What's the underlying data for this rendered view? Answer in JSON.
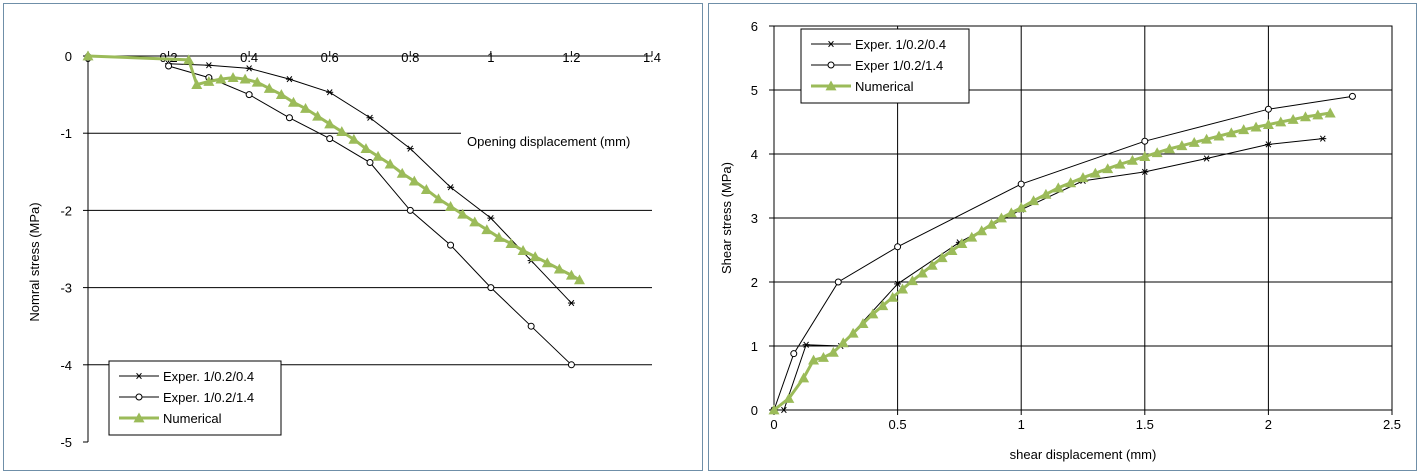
{
  "chart_data": [
    {
      "type": "line",
      "title": "",
      "xlabel": "Opening displacement (mm)",
      "ylabel": "Nomral stress (MPa)",
      "xlim": [
        0,
        1.4
      ],
      "ylim": [
        -5,
        0
      ],
      "xticks": [
        "0",
        "0.2",
        "0.4",
        "0.6",
        "0.8",
        "1",
        "1.2",
        "1.4"
      ],
      "yticks": [
        "0",
        "-1",
        "-2",
        "-3",
        "-4",
        "-5"
      ],
      "grid": "horizontal",
      "x_axis_position": "top",
      "legend_position": "bottom-left",
      "series": [
        {
          "name": "Exper. 1/0.2/0.4",
          "marker": "asterisk",
          "color": "#000000",
          "x": [
            0.2,
            0.3,
            0.4,
            0.5,
            0.6,
            0.7,
            0.8,
            0.9,
            1.0,
            1.1,
            1.2
          ],
          "y": [
            -0.1,
            -0.12,
            -0.16,
            -0.3,
            -0.47,
            -0.8,
            -1.2,
            -1.7,
            -2.1,
            -2.65,
            -3.2
          ]
        },
        {
          "name": "Exper. 1/0.2/1.4",
          "marker": "circle",
          "color": "#000000",
          "x": [
            0.2,
            0.3,
            0.4,
            0.5,
            0.6,
            0.7,
            0.8,
            0.9,
            1.0,
            1.1,
            1.2
          ],
          "y": [
            -0.13,
            -0.28,
            -0.5,
            -0.8,
            -1.07,
            -1.38,
            -2.0,
            -2.45,
            -3.0,
            -3.5,
            -4.0
          ]
        },
        {
          "name": "Numerical",
          "marker": "triangle",
          "color": "#9bbb59",
          "x": [
            0.0,
            0.25,
            0.27,
            0.3,
            0.33,
            0.36,
            0.39,
            0.42,
            0.45,
            0.48,
            0.51,
            0.54,
            0.57,
            0.6,
            0.63,
            0.66,
            0.69,
            0.72,
            0.75,
            0.78,
            0.81,
            0.84,
            0.87,
            0.9,
            0.93,
            0.96,
            0.99,
            1.02,
            1.05,
            1.08,
            1.11,
            1.14,
            1.17,
            1.2,
            1.22
          ],
          "y": [
            0.0,
            -0.05,
            -0.37,
            -0.33,
            -0.3,
            -0.28,
            -0.3,
            -0.34,
            -0.42,
            -0.5,
            -0.6,
            -0.68,
            -0.78,
            -0.88,
            -0.98,
            -1.08,
            -1.2,
            -1.3,
            -1.4,
            -1.52,
            -1.62,
            -1.73,
            -1.85,
            -1.95,
            -2.05,
            -2.15,
            -2.25,
            -2.35,
            -2.43,
            -2.52,
            -2.6,
            -2.68,
            -2.76,
            -2.84,
            -2.9
          ]
        }
      ]
    },
    {
      "type": "line",
      "title": "",
      "xlabel": "shear displacement (mm)",
      "ylabel": "Shear stress (MPa)",
      "xlim": [
        0,
        2.5
      ],
      "ylim": [
        0,
        6
      ],
      "xticks": [
        "0",
        "0.5",
        "1",
        "1.5",
        "2",
        "2.5"
      ],
      "yticks": [
        "0",
        "1",
        "2",
        "3",
        "4",
        "5",
        "6"
      ],
      "grid": "both",
      "legend_position": "top-left",
      "series": [
        {
          "name": "Exper. 1/0.2/0.4",
          "marker": "asterisk",
          "color": "#000000",
          "x": [
            0.0,
            0.04,
            0.13,
            0.27,
            0.5,
            0.75,
            1.0,
            1.25,
            1.5,
            1.75,
            2.0,
            2.22
          ],
          "y": [
            0.0,
            0.0,
            1.02,
            1.0,
            1.97,
            2.62,
            3.13,
            3.58,
            3.72,
            3.93,
            4.15,
            4.24
          ]
        },
        {
          "name": "Exper 1/0.2/1.4",
          "marker": "circle",
          "color": "#000000",
          "x": [
            0.0,
            0.08,
            0.26,
            0.5,
            1.0,
            1.5,
            2.0,
            2.34
          ],
          "y": [
            0.0,
            0.88,
            2.0,
            2.55,
            3.53,
            4.2,
            4.7,
            4.9
          ]
        },
        {
          "name": "Numerical",
          "marker": "triangle",
          "color": "#9bbb59",
          "x": [
            0.0,
            0.06,
            0.12,
            0.16,
            0.2,
            0.24,
            0.28,
            0.32,
            0.36,
            0.4,
            0.44,
            0.48,
            0.52,
            0.56,
            0.6,
            0.64,
            0.68,
            0.72,
            0.76,
            0.8,
            0.84,
            0.88,
            0.92,
            0.96,
            1.0,
            1.05,
            1.1,
            1.15,
            1.2,
            1.25,
            1.3,
            1.35,
            1.4,
            1.45,
            1.5,
            1.55,
            1.6,
            1.65,
            1.7,
            1.75,
            1.8,
            1.85,
            1.9,
            1.95,
            2.0,
            2.05,
            2.1,
            2.15,
            2.2,
            2.25
          ],
          "y": [
            0.0,
            0.18,
            0.5,
            0.78,
            0.82,
            0.9,
            1.05,
            1.2,
            1.35,
            1.5,
            1.63,
            1.76,
            1.89,
            2.02,
            2.14,
            2.26,
            2.38,
            2.49,
            2.6,
            2.7,
            2.8,
            2.9,
            3.0,
            3.08,
            3.16,
            3.27,
            3.37,
            3.47,
            3.55,
            3.63,
            3.7,
            3.77,
            3.84,
            3.9,
            3.96,
            4.02,
            4.08,
            4.13,
            4.18,
            4.23,
            4.28,
            4.33,
            4.38,
            4.42,
            4.46,
            4.5,
            4.54,
            4.58,
            4.61,
            4.64
          ]
        }
      ]
    }
  ]
}
